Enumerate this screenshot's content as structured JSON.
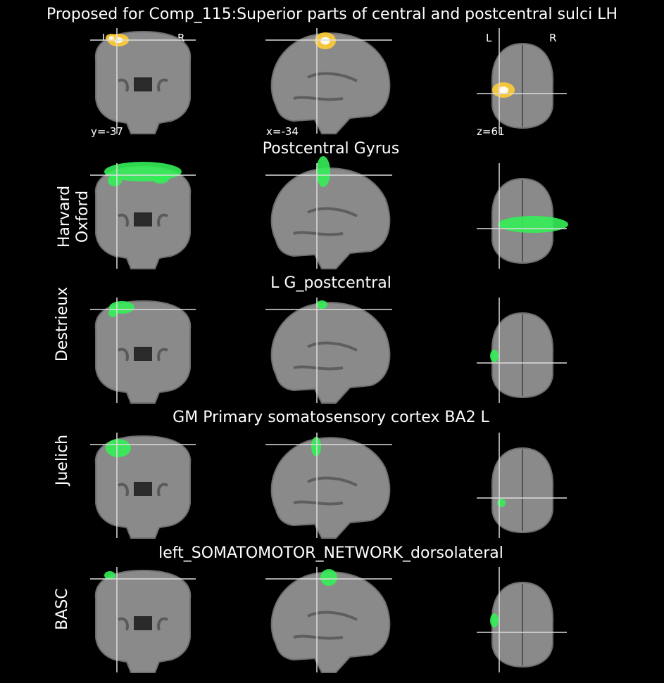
{
  "title": "Proposed for Comp_115:Superior parts of central and postcentral sulci LH",
  "coords": {
    "coronal": "y=-37",
    "sagittal": "x=-34",
    "axial": "z=61"
  },
  "orientation": {
    "left": "L",
    "right": "R"
  },
  "overlay_colors": {
    "component": "#ffcc33",
    "atlas": "#33ee55"
  },
  "rows": [
    {
      "atlas": "",
      "region": ""
    },
    {
      "atlas": "Harvard Oxford",
      "atlas_line1": "Harvard",
      "atlas_line2": "Oxford",
      "region": "Postcentral Gyrus"
    },
    {
      "atlas": "Destrieux",
      "region": "L G_postcentral"
    },
    {
      "atlas": "Juelich",
      "region": "GM Primary somatosensory cortex BA2 L"
    },
    {
      "atlas": "BASC",
      "region": "left_SOMATOMOTOR_NETWORK_dorsolateral"
    }
  ]
}
